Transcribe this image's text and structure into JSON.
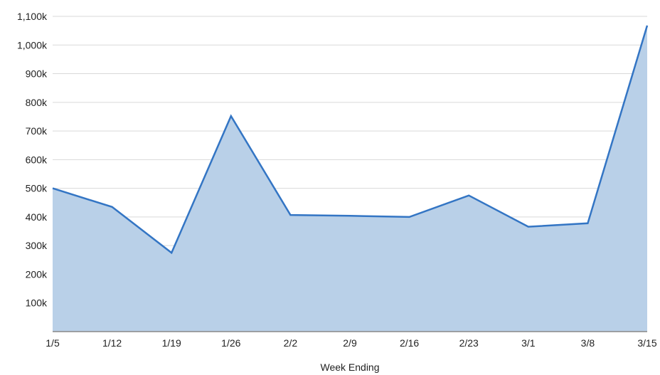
{
  "chart_data": {
    "type": "area",
    "categories": [
      "1/5",
      "1/12",
      "1/19",
      "1/26",
      "2/2",
      "2/9",
      "2/16",
      "2/23",
      "3/1",
      "3/8",
      "3/15"
    ],
    "series": [
      {
        "values": [
          500000,
          435000,
          275000,
          752000,
          407000,
          404000,
          400000,
          475000,
          366000,
          378000,
          1068000
        ]
      }
    ],
    "xlabel": "Week Ending",
    "ylabel": "",
    "ylim": [
      0,
      1100000
    ],
    "yticks": [
      {
        "value": 100000,
        "label": "100k"
      },
      {
        "value": 200000,
        "label": "200k"
      },
      {
        "value": 300000,
        "label": "300k"
      },
      {
        "value": 400000,
        "label": "400k"
      },
      {
        "value": 500000,
        "label": "500k"
      },
      {
        "value": 600000,
        "label": "600k"
      },
      {
        "value": 700000,
        "label": "700k"
      },
      {
        "value": 800000,
        "label": "800k"
      },
      {
        "value": 900000,
        "label": "900k"
      },
      {
        "value": 1000000,
        "label": "1,000k"
      },
      {
        "value": 1100000,
        "label": "1,100k"
      }
    ],
    "grid": true,
    "legend": "none",
    "colors": {
      "line": "#3375c4",
      "fill": "#b9d0e8",
      "grid": "#d9d9d9",
      "axis": "#888888"
    }
  }
}
